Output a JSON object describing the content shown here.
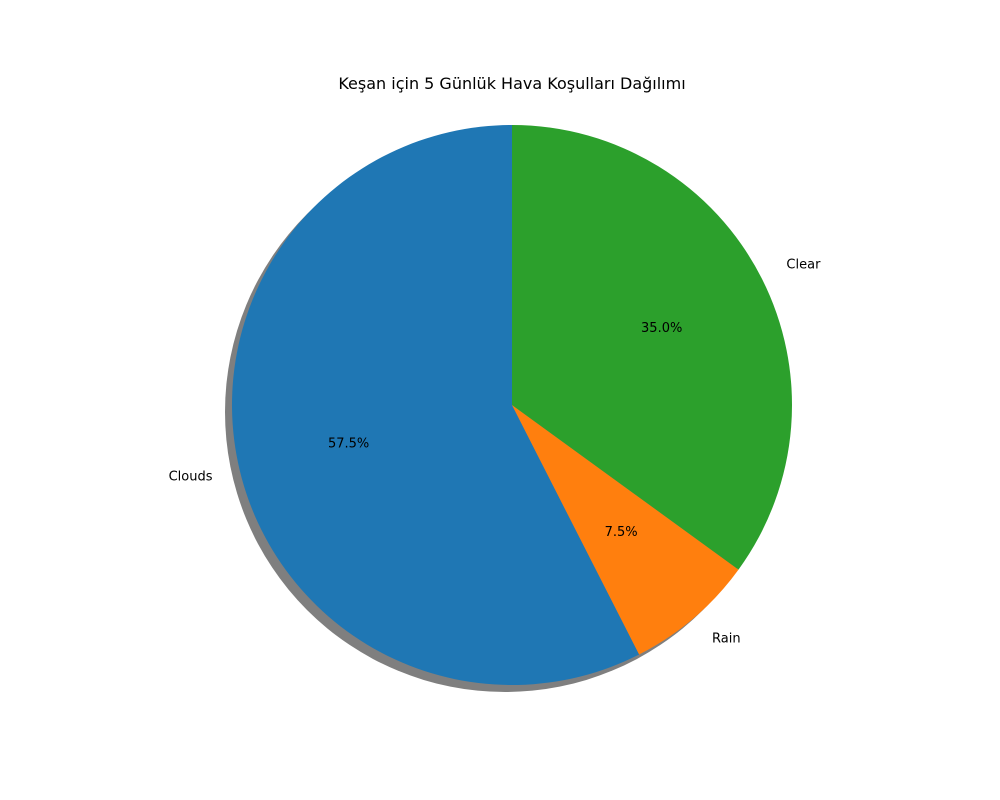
{
  "chart_data": {
    "type": "pie",
    "title": "Keşan için 5 Günlük Hava Koşulları Dağılımı",
    "categories": [
      "Clouds",
      "Rain",
      "Clear"
    ],
    "values": [
      57.5,
      7.5,
      35.0
    ],
    "value_labels": [
      "57.5%",
      "7.5%",
      "35.0%"
    ],
    "colors": [
      "#1f77b4",
      "#ff7f0e",
      "#2ca02c"
    ],
    "start_angle_deg": 90,
    "direction": "counterclockwise",
    "shadow": true,
    "legend": "none"
  }
}
